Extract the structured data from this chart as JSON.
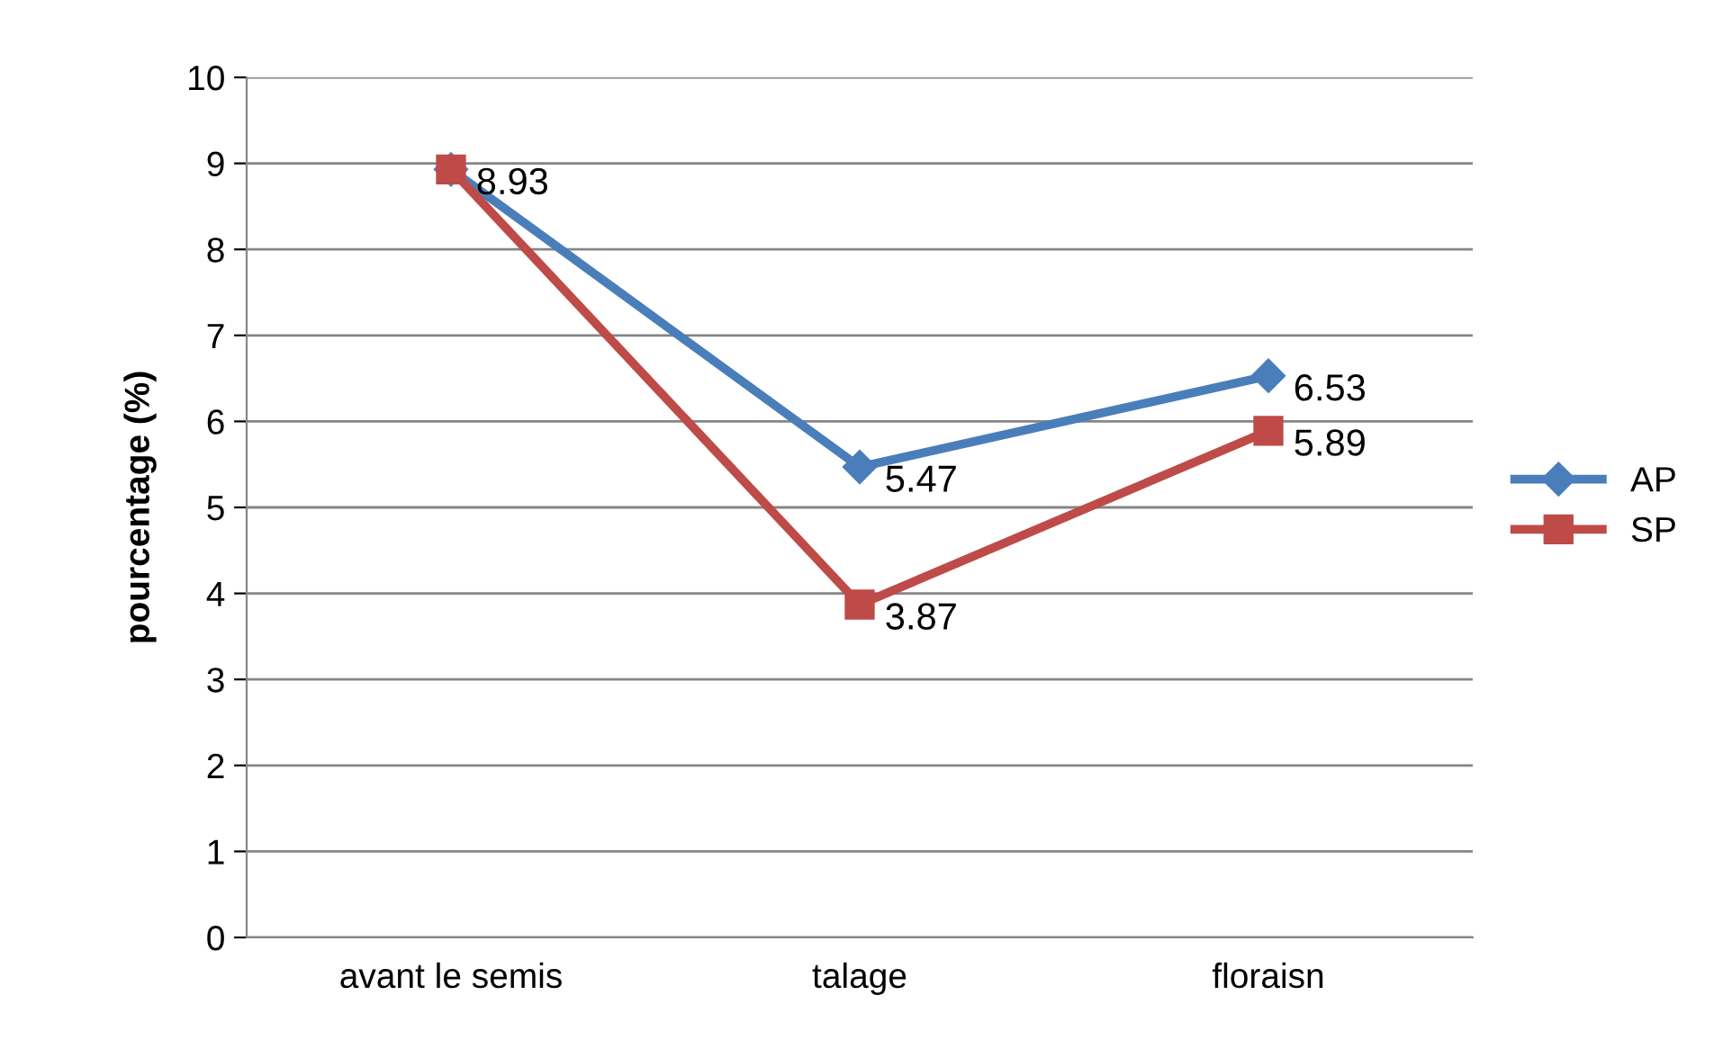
{
  "chart_data": {
    "type": "line",
    "ylabel": "pourcentage (%)",
    "categories": [
      "avant le semis",
      "talage",
      "floraisn"
    ],
    "series": [
      {
        "name": "AP",
        "color": "#4a7ebb",
        "marker": "diamond",
        "values": [
          8.93,
          5.47,
          6.53
        ],
        "value_labels": [
          "8.93",
          "5.47",
          "6.53"
        ]
      },
      {
        "name": "SP",
        "color": "#be4b48",
        "marker": "square",
        "values": [
          8.93,
          3.87,
          5.89
        ],
        "value_labels": [
          null,
          "3.87",
          "5.89"
        ]
      }
    ],
    "ylim": [
      0,
      10
    ],
    "yticks": [
      0,
      1,
      2,
      3,
      4,
      5,
      6,
      7,
      8,
      9,
      10
    ],
    "grid": "y",
    "legend": "right"
  }
}
